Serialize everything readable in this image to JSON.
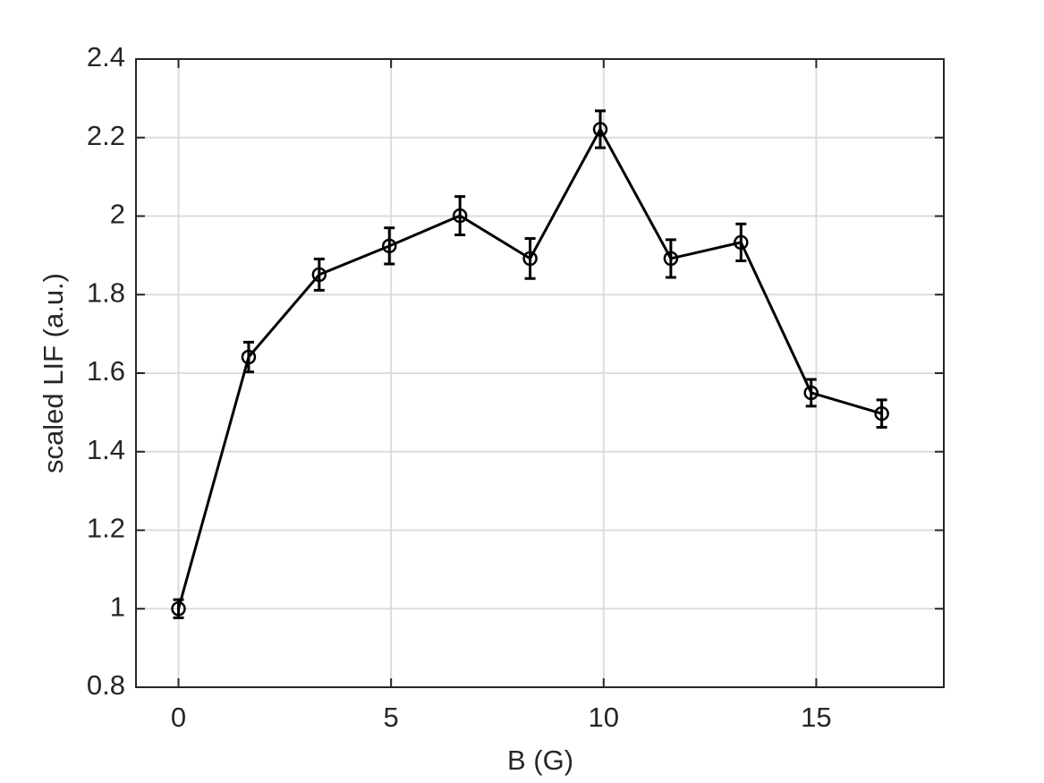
{
  "chart_data": {
    "type": "line",
    "x_label": "B (G)",
    "y_label": "scaled LIF (a.u.)",
    "x": [
      0,
      1.65,
      3.31,
      4.96,
      6.62,
      8.27,
      9.92,
      11.58,
      13.23,
      14.88,
      16.54
    ],
    "series": [
      {
        "color": "#000000",
        "values": [
          1.0,
          1.641,
          1.851,
          1.924,
          2.001,
          1.892,
          2.221,
          1.892,
          1.933,
          1.55,
          1.497
        ],
        "errors": [
          0.023,
          0.038,
          0.04,
          0.046,
          0.049,
          0.051,
          0.047,
          0.048,
          0.047,
          0.034,
          0.035
        ]
      }
    ],
    "xlim": [
      -1,
      18
    ],
    "ylim": [
      0.8,
      2.4
    ],
    "xticks": [
      0,
      5,
      10,
      15
    ],
    "yticks": [
      0.8,
      1,
      1.2,
      1.4,
      1.6,
      1.8,
      2,
      2.2,
      2.4
    ],
    "grid": true
  }
}
